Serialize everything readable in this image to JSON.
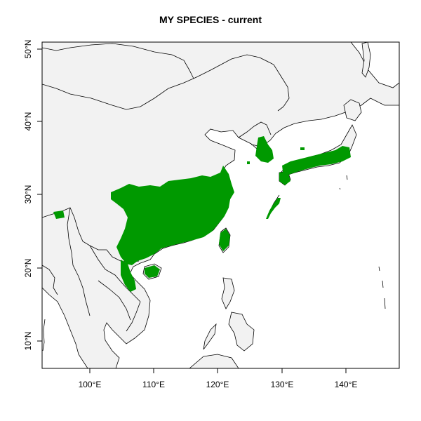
{
  "title": "MY SPECIES - current",
  "x_ticks": [
    "100°E",
    "110°E",
    "120°E",
    "130°E",
    "140°E"
  ],
  "y_ticks": [
    "10°N",
    "20°N",
    "30°N",
    "40°N",
    "50°N"
  ],
  "colors": {
    "land": "#f2f2f2",
    "range": "#009900",
    "ocean": "#ffffff",
    "border": "#000000"
  }
}
